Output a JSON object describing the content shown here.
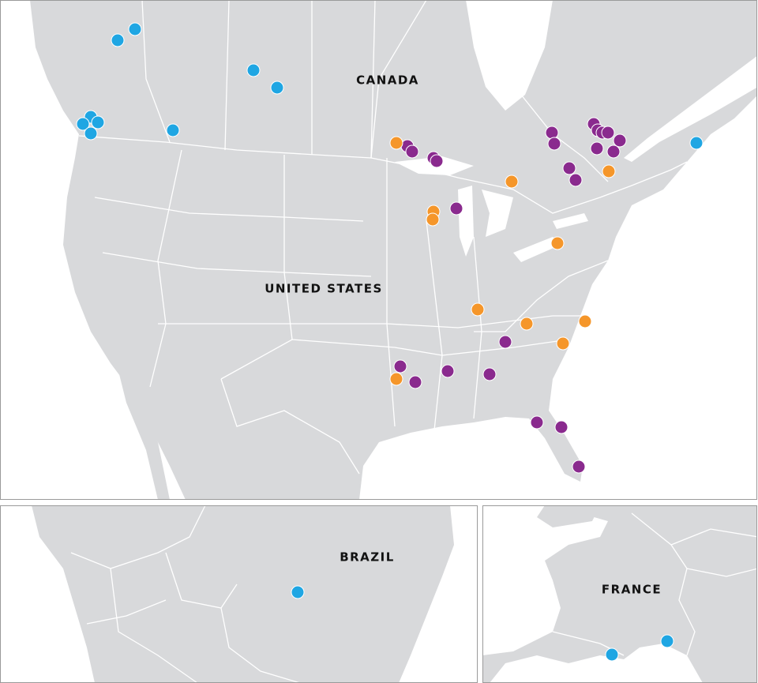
{
  "panels": [
    {
      "labels": [
        "CANADA",
        "UNITED STATES"
      ]
    },
    {
      "labels": [
        "BRAZIL"
      ]
    },
    {
      "labels": [
        "FRANCE"
      ]
    }
  ]
}
